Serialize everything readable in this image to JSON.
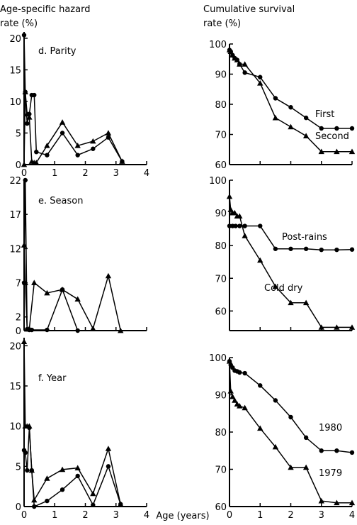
{
  "headers": {
    "left_line1": "Age-specific hazard",
    "left_line2": "rate (%)",
    "right_line1": "Cumulative survival",
    "right_line2": "rate (%)"
  },
  "xlabel": "Age (years)",
  "chart_data": [
    {
      "type": "line",
      "title": "d. Parity",
      "xlim": [
        0,
        4
      ],
      "ylim": [
        0,
        21
      ],
      "x_ticks": [
        "0",
        "1",
        "2",
        "3",
        "4"
      ],
      "y_ticks": [
        "0",
        "5",
        "10",
        "15",
        "20"
      ],
      "y_tick_values": [
        0,
        5,
        10,
        15,
        20
      ],
      "series": [
        {
          "marker": "circle",
          "x": [
            0,
            0.04,
            0.1,
            0.17,
            0.25,
            0.33,
            0.4,
            0.75,
            1.25,
            1.75,
            2.25,
            2.75,
            3.2
          ],
          "y": [
            20.5,
            11.5,
            6.5,
            8,
            11,
            11,
            2,
            1.5,
            5,
            1.5,
            2.5,
            4.3,
            0.5
          ]
        },
        {
          "marker": "triangle",
          "x": [
            0,
            0.04,
            0.1,
            0.17,
            0.25,
            0.33,
            0.4,
            0.75,
            1.25,
            1.75,
            2.25,
            2.75,
            3.2
          ],
          "y": [
            0,
            11.5,
            8,
            7.5,
            0.5,
            0.3,
            0.3,
            3,
            6.7,
            3,
            3.7,
            5,
            0.5
          ]
        }
      ]
    },
    {
      "type": "line",
      "title": "e. Season",
      "xlim": [
        0,
        4
      ],
      "ylim": [
        0,
        22
      ],
      "x_ticks": [],
      "y_ticks": [
        "0",
        "2",
        "7",
        "12",
        "17",
        "22"
      ],
      "y_tick_values": [
        0,
        2,
        7,
        12,
        17,
        22
      ],
      "series": [
        {
          "marker": "circle",
          "x": [
            0,
            0.04,
            0.1,
            0.17,
            0.25,
            0.75,
            1.25,
            1.75
          ],
          "y": [
            7,
            22,
            0.2,
            0.1,
            0.1,
            0.1,
            6,
            0
          ]
        },
        {
          "marker": "triangle",
          "x": [
            0,
            0.04,
            0.1,
            0.17,
            0.33,
            0.75,
            1.25,
            1.75,
            2.25,
            2.75,
            3.15
          ],
          "y": [
            12.5,
            7,
            0.2,
            0.3,
            7,
            5.5,
            6,
            4.6,
            0.3,
            8,
            0
          ]
        }
      ]
    },
    {
      "type": "line",
      "title": "f. Year",
      "xlim": [
        0,
        4
      ],
      "ylim": [
        0,
        21
      ],
      "x_ticks": [
        "0",
        "1",
        "2",
        "3",
        "4"
      ],
      "y_ticks": [
        "0",
        "5",
        "10",
        "15",
        "20"
      ],
      "y_tick_values": [
        0,
        5,
        10,
        15,
        20
      ],
      "series": [
        {
          "marker": "circle",
          "x": [
            0,
            0.04,
            0.1,
            0.17,
            0.25,
            0.33,
            0.75,
            1.25,
            1.75,
            2.25,
            2.75,
            3.15
          ],
          "y": [
            7,
            6.7,
            4.5,
            9.8,
            4.5,
            0,
            0.7,
            2.1,
            3.8,
            0.2,
            5,
            0.3
          ]
        },
        {
          "marker": "triangle",
          "x": [
            0,
            0.04,
            0.1,
            0.17,
            0.25,
            0.33,
            0.75,
            1.25,
            1.75,
            2.25,
            2.75,
            3.15
          ],
          "y": [
            20.5,
            10,
            10,
            10,
            4.5,
            0.8,
            3.5,
            4.6,
            4.8,
            1.6,
            7.2,
            0.3
          ]
        }
      ]
    },
    {
      "type": "line",
      "title": "",
      "xlim": [
        0,
        4
      ],
      "ylim": [
        60,
        100
      ],
      "x_ticks": [],
      "y_ticks": [
        "60",
        "70",
        "80",
        "90",
        "100"
      ],
      "y_tick_values": [
        60,
        70,
        80,
        90,
        100
      ],
      "series": [
        {
          "name": "First",
          "marker": "circle",
          "x": [
            0,
            0.04,
            0.1,
            0.17,
            0.25,
            0.33,
            0.5,
            1,
            1.5,
            2,
            2.5,
            3,
            3.5,
            4
          ],
          "y": [
            98,
            97.5,
            96.3,
            95.3,
            94.7,
            93.3,
            90.5,
            89,
            82,
            79,
            75.5,
            72,
            72,
            72
          ]
        },
        {
          "name": "Second",
          "marker": "triangle",
          "x": [
            0,
            0.04,
            0.1,
            0.17,
            0.25,
            0.33,
            0.5,
            1,
            1.5,
            2,
            2.5,
            3,
            3.5,
            4
          ],
          "y": [
            98,
            97.5,
            96.3,
            95.3,
            94.7,
            93.3,
            93.3,
            87,
            75.5,
            72.5,
            69.5,
            64.3,
            64.3,
            64.3
          ]
        }
      ]
    },
    {
      "type": "line",
      "title": "",
      "xlim": [
        0,
        4
      ],
      "ylim": [
        54,
        100
      ],
      "x_ticks": [],
      "y_ticks": [
        "60",
        "70",
        "80",
        "90",
        "100"
      ],
      "y_tick_values": [
        60,
        70,
        80,
        90,
        100
      ],
      "series": [
        {
          "name": "Post-rains",
          "marker": "circle",
          "x": [
            0,
            0.1,
            0.2,
            0.33,
            0.5,
            1,
            1.5,
            2,
            2.5,
            3,
            3.5,
            4
          ],
          "y": [
            86,
            86,
            86,
            86,
            86,
            86,
            79,
            79,
            79,
            78.7,
            78.7,
            78.8
          ]
        },
        {
          "name": "Cold dry",
          "marker": "triangle",
          "x": [
            0,
            0.04,
            0.1,
            0.17,
            0.25,
            0.33,
            0.5,
            1,
            1.5,
            2,
            2.5,
            3,
            3.5,
            4
          ],
          "y": [
            95,
            91,
            90,
            90,
            89,
            89,
            83,
            75.5,
            67.5,
            62.5,
            62.5,
            55,
            55,
            55
          ]
        }
      ]
    },
    {
      "type": "line",
      "title": "",
      "xlim": [
        0,
        4
      ],
      "ylim": [
        60,
        100
      ],
      "x_ticks": [
        "0",
        "1",
        "2",
        "3",
        "4"
      ],
      "y_ticks": [
        "60",
        "70",
        "80",
        "90",
        "100"
      ],
      "y_tick_values": [
        60,
        70,
        80,
        90,
        100
      ],
      "series": [
        {
          "name": "1980",
          "marker": "circle",
          "x": [
            0,
            0.04,
            0.1,
            0.17,
            0.25,
            0.33,
            0.5,
            1,
            1.5,
            2,
            2.5,
            3,
            3.5,
            4
          ],
          "y": [
            99,
            98,
            97.3,
            96.5,
            96.3,
            96,
            95.8,
            92.5,
            88.5,
            84,
            78.5,
            75,
            75,
            74.5
          ]
        },
        {
          "name": "1979",
          "marker": "triangle",
          "x": [
            0,
            0.04,
            0.1,
            0.17,
            0.25,
            0.33,
            0.5,
            1,
            1.5,
            2,
            2.5,
            3,
            3.5,
            4
          ],
          "y": [
            99,
            91,
            89.5,
            88.5,
            87.5,
            87,
            86.5,
            81,
            76,
            70.5,
            70.5,
            61.5,
            61,
            61
          ]
        }
      ]
    }
  ]
}
